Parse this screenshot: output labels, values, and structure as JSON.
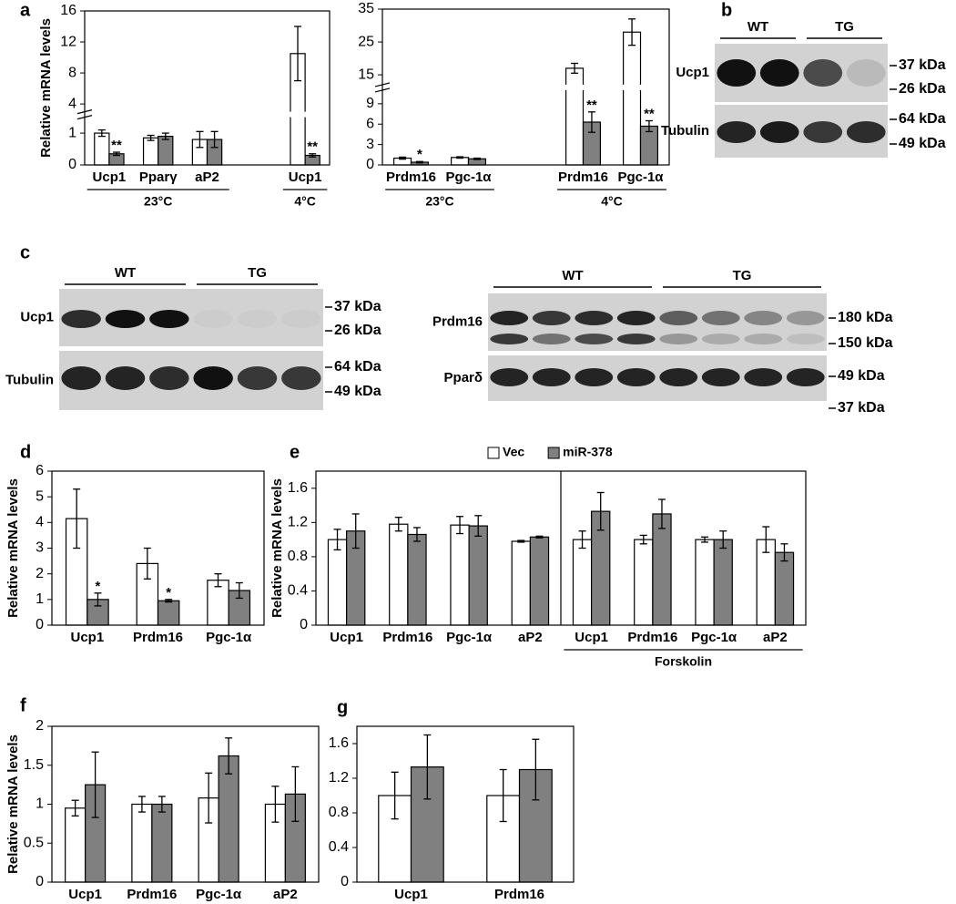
{
  "chart_data": [
    {
      "type": "bar",
      "panel": "a",
      "ylabel": "Relative mRNA levels",
      "categories": [
        "Ucp1",
        "Pparγ",
        "aP2",
        null,
        "Ucp1"
      ],
      "series": [
        {
          "color": "#ffffff",
          "values": [
            1.0,
            0.85,
            0.8,
            null,
            10.5
          ],
          "errors": [
            0.1,
            0.08,
            0.25,
            null,
            3.5
          ],
          "stars": [
            null,
            null,
            null,
            null,
            null
          ]
        },
        {
          "color": "#808080",
          "values": [
            0.35,
            0.9,
            0.8,
            null,
            0.3
          ],
          "errors": [
            0.05,
            0.1,
            0.25,
            null,
            0.05
          ],
          "stars": [
            "**",
            null,
            null,
            null,
            "**"
          ]
        }
      ],
      "ylim": [
        0,
        16
      ],
      "ybreak": [
        1.5,
        3
      ],
      "yticks": [
        0,
        1,
        4,
        8,
        12,
        16
      ],
      "groups": [
        {
          "label": "23°C",
          "span": [
            0,
            2
          ]
        },
        {
          "label": "4°C",
          "span": [
            4,
            4
          ]
        }
      ]
    },
    {
      "type": "bar",
      "categories": [
        "Prdm16",
        "Pgc-1α",
        null,
        "Prdm16",
        "Pgc-1α"
      ],
      "series": [
        {
          "color": "#ffffff",
          "values": [
            1.0,
            1.1,
            null,
            17,
            28
          ],
          "errors": [
            0.15,
            0.1,
            null,
            1.5,
            4
          ],
          "stars": [
            null,
            null,
            null,
            null,
            null
          ]
        },
        {
          "color": "#808080",
          "values": [
            0.4,
            0.9,
            null,
            6.3,
            5.7
          ],
          "errors": [
            0.1,
            0.1,
            null,
            1.5,
            0.8
          ],
          "stars": [
            "*",
            null,
            null,
            "**",
            "**"
          ]
        }
      ],
      "ylim": [
        0,
        35
      ],
      "ybreak": [
        11,
        12
      ],
      "yticks": [
        0,
        3,
        6,
        9,
        15,
        25,
        35
      ],
      "groups": [
        {
          "label": "23°C",
          "span": [
            0,
            1
          ]
        },
        {
          "label": "4°C",
          "span": [
            3,
            4
          ]
        }
      ]
    },
    {
      "type": "bar",
      "panel": "d",
      "ylabel": "Relative mRNA levels",
      "categories": [
        "Ucp1",
        "Prdm16",
        "Pgc-1α"
      ],
      "series": [
        {
          "color": "#ffffff",
          "values": [
            4.15,
            2.4,
            1.75
          ],
          "errors": [
            1.15,
            0.6,
            0.25
          ],
          "stars": [
            null,
            null,
            null
          ]
        },
        {
          "color": "#808080",
          "values": [
            1.0,
            0.95,
            1.35
          ],
          "errors": [
            0.25,
            0.05,
            0.3
          ],
          "stars": [
            "*",
            "*",
            null
          ]
        }
      ],
      "ylim": [
        0,
        6
      ],
      "yticks": [
        0,
        1,
        2,
        3,
        4,
        5,
        6
      ]
    },
    {
      "type": "bar",
      "panel": "e",
      "ylabel": "Relative mRNA levels",
      "legend": "top",
      "categories": [
        "Ucp1",
        "Prdm16",
        "Pgc-1α",
        "aP2",
        "Ucp1",
        "Prdm16",
        "Pgc-1α",
        "aP2"
      ],
      "series": [
        {
          "name": "Vec",
          "color": "#ffffff",
          "values": [
            1.0,
            1.18,
            1.17,
            0.98,
            1.0,
            1.0,
            1.0,
            1.0
          ],
          "errors": [
            0.12,
            0.08,
            0.1,
            0.01,
            0.1,
            0.05,
            0.03,
            0.15
          ]
        },
        {
          "name": "miR-378",
          "color": "#808080",
          "values": [
            1.1,
            1.06,
            1.16,
            1.03,
            1.33,
            1.3,
            1.0,
            0.85
          ],
          "errors": [
            0.2,
            0.08,
            0.12,
            0.01,
            0.22,
            0.17,
            0.1,
            0.1
          ]
        }
      ],
      "ylim": [
        0,
        1.8
      ],
      "yticks": [
        0,
        0.4,
        0.8,
        1.2,
        1.6
      ],
      "groups": [
        {
          "label": "Forskolin",
          "span": [
            4,
            7
          ]
        }
      ]
    },
    {
      "type": "bar",
      "panel": "f",
      "ylabel": "Relative mRNA levels",
      "categories": [
        "Ucp1",
        "Prdm16",
        "Pgc-1α",
        "aP2"
      ],
      "series": [
        {
          "color": "#ffffff",
          "values": [
            0.95,
            1.0,
            1.08,
            1.0
          ],
          "errors": [
            0.1,
            0.1,
            0.32,
            0.23
          ]
        },
        {
          "color": "#808080",
          "values": [
            1.25,
            1.0,
            1.62,
            1.13
          ],
          "errors": [
            0.42,
            0.1,
            0.23,
            0.35
          ]
        }
      ],
      "ylim": [
        0,
        2
      ],
      "yticks": [
        0,
        0.5,
        1,
        1.5,
        2
      ]
    },
    {
      "type": "bar",
      "panel": "g",
      "categories": [
        "Ucp1",
        "Prdm16"
      ],
      "series": [
        {
          "color": "#ffffff",
          "values": [
            1.0,
            1.0
          ],
          "errors": [
            0.27,
            0.3
          ]
        },
        {
          "color": "#808080",
          "values": [
            1.33,
            1.3
          ],
          "errors": [
            0.37,
            0.35
          ]
        }
      ],
      "ylim": [
        0,
        1.8
      ],
      "yticks": [
        0,
        0.4,
        0.8,
        1.2,
        1.6
      ]
    }
  ],
  "blots": [
    {
      "panel": "b",
      "groups": [
        "WT",
        "TG"
      ],
      "rows": [
        "Ucp1",
        "Tubulin"
      ],
      "markers": [
        "37 kDa",
        "26 kDa",
        "64 kDa",
        "49 kDa"
      ]
    },
    {
      "panel": "c",
      "groups": [
        "WT",
        "TG"
      ],
      "rows": [
        "Ucp1",
        "Tubulin"
      ],
      "markers": [
        "37 kDa",
        "26 kDa",
        "64 kDa",
        "49 kDa"
      ]
    },
    {
      "groups": [
        "WT",
        "TG"
      ],
      "rows": [
        "Prdm16",
        "Pparδ"
      ],
      "markers": [
        "180 kDa",
        "150 kDa",
        "49 kDa",
        "37 kDa"
      ]
    }
  ]
}
